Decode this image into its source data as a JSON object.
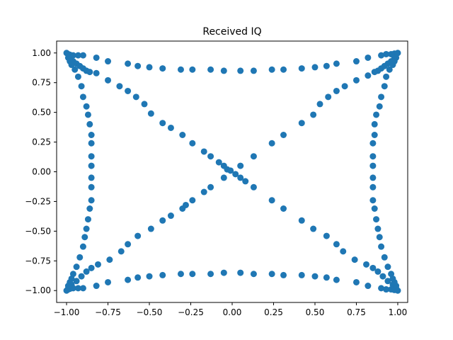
{
  "chart_data": {
    "type": "scatter",
    "title": "Received IQ",
    "xlabel": "",
    "ylabel": "",
    "xlim": [
      -1.06,
      1.06
    ],
    "ylim": [
      -1.1,
      1.1
    ],
    "xticks": [
      -1.0,
      -0.75,
      -0.5,
      -0.25,
      0.0,
      0.25,
      0.5,
      0.75,
      1.0
    ],
    "xtick_labels": [
      "−1.00",
      "−0.75",
      "−0.50",
      "−0.25",
      "0.00",
      "0.25",
      "0.50",
      "0.75",
      "1.00"
    ],
    "yticks": [
      -1.0,
      -0.75,
      -0.5,
      -0.25,
      0.0,
      0.25,
      0.5,
      0.75,
      1.0
    ],
    "ytick_labels": [
      "−1.00",
      "−0.75",
      "−0.50",
      "−0.25",
      "0.00",
      "0.25",
      "0.50",
      "0.75",
      "1.00"
    ],
    "grid": false,
    "marker_color": "#1f77b4",
    "series": [
      {
        "points": [
          [
            -0.96,
            0.93
          ],
          [
            -0.98,
            0.96
          ],
          [
            -0.94,
            0.91
          ],
          [
            -0.92,
            0.89
          ],
          [
            -0.9,
            0.87
          ],
          [
            -0.88,
            0.85
          ],
          [
            -0.86,
            0.84
          ],
          [
            -0.82,
            0.83
          ],
          [
            -0.75,
            0.77
          ],
          [
            -0.68,
            0.72
          ],
          [
            -0.63,
            0.68
          ],
          [
            -0.58,
            0.63
          ],
          [
            -0.53,
            0.57
          ],
          [
            -0.49,
            0.49
          ],
          [
            -0.42,
            0.41
          ],
          [
            -0.37,
            0.37
          ],
          [
            -0.3,
            0.31
          ],
          [
            -0.24,
            0.24
          ],
          [
            -0.17,
            0.17
          ],
          [
            -0.13,
            0.13
          ],
          [
            -0.08,
            0.08
          ],
          [
            -0.05,
            0.05
          ],
          [
            -0.03,
            0.02
          ],
          [
            -0.01,
            0.01
          ],
          [
            0.02,
            -0.02
          ],
          [
            0.05,
            -0.05
          ],
          [
            0.08,
            -0.08
          ],
          [
            0.13,
            -0.13
          ],
          [
            0.24,
            -0.24
          ],
          [
            0.31,
            -0.31
          ],
          [
            0.42,
            -0.41
          ],
          [
            0.49,
            -0.48
          ],
          [
            0.57,
            -0.54
          ],
          [
            0.63,
            -0.61
          ],
          [
            0.67,
            -0.67
          ],
          [
            0.74,
            -0.74
          ],
          [
            0.81,
            -0.78
          ],
          [
            0.85,
            -0.81
          ],
          [
            0.88,
            -0.84
          ],
          [
            0.91,
            -0.88
          ],
          [
            0.94,
            -0.92
          ],
          [
            0.97,
            -0.95
          ],
          [
            0.99,
            -0.98
          ],
          [
            0.96,
            0.93
          ],
          [
            0.98,
            0.96
          ],
          [
            0.94,
            0.91
          ],
          [
            0.92,
            0.89
          ],
          [
            0.9,
            0.87
          ],
          [
            0.88,
            0.85
          ],
          [
            0.86,
            0.84
          ],
          [
            0.82,
            0.81
          ],
          [
            0.75,
            0.77
          ],
          [
            0.68,
            0.72
          ],
          [
            0.63,
            0.68
          ],
          [
            0.58,
            0.63
          ],
          [
            0.53,
            0.57
          ],
          [
            0.49,
            0.48
          ],
          [
            0.42,
            0.41
          ],
          [
            0.31,
            0.31
          ],
          [
            0.24,
            0.24
          ],
          [
            0.13,
            0.13
          ],
          [
            0.05,
            0.05
          ],
          [
            -0.05,
            -0.05
          ],
          [
            -0.13,
            -0.13
          ],
          [
            -0.17,
            -0.17
          ],
          [
            -0.24,
            -0.24
          ],
          [
            -0.28,
            -0.28
          ],
          [
            -0.3,
            -0.31
          ],
          [
            -0.37,
            -0.37
          ],
          [
            -0.42,
            -0.41
          ],
          [
            -0.49,
            -0.48
          ],
          [
            -0.57,
            -0.54
          ],
          [
            -0.63,
            -0.61
          ],
          [
            -0.67,
            -0.67
          ],
          [
            -0.74,
            -0.74
          ],
          [
            -0.81,
            -0.78
          ],
          [
            -0.85,
            -0.81
          ],
          [
            -0.88,
            -0.84
          ],
          [
            -0.91,
            -0.88
          ],
          [
            -0.94,
            -0.92
          ],
          [
            -0.97,
            -0.95
          ],
          [
            -0.99,
            -0.98
          ],
          [
            -1.0,
            1.0
          ],
          [
            -0.99,
            0.99
          ],
          [
            -0.98,
            0.985
          ],
          [
            -0.96,
            0.98
          ],
          [
            -0.93,
            0.98
          ],
          [
            -0.9,
            0.98
          ],
          [
            -0.82,
            0.96
          ],
          [
            -0.75,
            0.93
          ],
          [
            -0.63,
            0.91
          ],
          [
            -0.57,
            0.89
          ],
          [
            -0.5,
            0.88
          ],
          [
            -0.42,
            0.87
          ],
          [
            -0.31,
            0.86
          ],
          [
            -0.24,
            0.86
          ],
          [
            -0.13,
            0.86
          ],
          [
            -0.05,
            0.85
          ],
          [
            0.05,
            0.85
          ],
          [
            0.13,
            0.85
          ],
          [
            0.24,
            0.86
          ],
          [
            0.31,
            0.86
          ],
          [
            0.42,
            0.87
          ],
          [
            0.5,
            0.88
          ],
          [
            0.57,
            0.89
          ],
          [
            0.63,
            0.91
          ],
          [
            0.75,
            0.93
          ],
          [
            0.82,
            0.96
          ],
          [
            0.9,
            0.98
          ],
          [
            0.93,
            0.99
          ],
          [
            0.96,
            0.99
          ],
          [
            0.98,
            0.995
          ],
          [
            1.0,
            1.0
          ],
          [
            -1.0,
            -1.0
          ],
          [
            -0.99,
            -0.99
          ],
          [
            -0.98,
            -0.985
          ],
          [
            -0.96,
            -0.98
          ],
          [
            -0.93,
            -0.98
          ],
          [
            -0.9,
            -0.98
          ],
          [
            -0.82,
            -0.96
          ],
          [
            -0.75,
            -0.93
          ],
          [
            -0.63,
            -0.91
          ],
          [
            -0.57,
            -0.89
          ],
          [
            -0.5,
            -0.88
          ],
          [
            -0.42,
            -0.87
          ],
          [
            -0.31,
            -0.86
          ],
          [
            -0.24,
            -0.86
          ],
          [
            -0.13,
            -0.86
          ],
          [
            -0.05,
            -0.85
          ],
          [
            0.05,
            -0.85
          ],
          [
            0.13,
            -0.86
          ],
          [
            0.24,
            -0.86
          ],
          [
            0.31,
            -0.87
          ],
          [
            0.42,
            -0.87
          ],
          [
            0.5,
            -0.88
          ],
          [
            0.57,
            -0.89
          ],
          [
            0.63,
            -0.91
          ],
          [
            0.75,
            -0.93
          ],
          [
            0.82,
            -0.96
          ],
          [
            0.9,
            -0.98
          ],
          [
            0.93,
            -0.99
          ],
          [
            0.96,
            -0.99
          ],
          [
            0.98,
            -0.995
          ],
          [
            -0.99,
            0.96
          ],
          [
            -0.98,
            0.93
          ],
          [
            -0.97,
            0.9
          ],
          [
            -0.95,
            0.86
          ],
          [
            -0.93,
            0.8
          ],
          [
            -0.91,
            0.72
          ],
          [
            -0.9,
            0.63
          ],
          [
            -0.88,
            0.55
          ],
          [
            -0.87,
            0.48
          ],
          [
            -0.86,
            0.4
          ],
          [
            -0.85,
            0.31
          ],
          [
            -0.85,
            0.24
          ],
          [
            -0.85,
            0.13
          ],
          [
            -0.85,
            0.05
          ],
          [
            -0.85,
            -0.05
          ],
          [
            -0.85,
            -0.13
          ],
          [
            -0.85,
            -0.24
          ],
          [
            -0.86,
            -0.31
          ],
          [
            -0.87,
            -0.4
          ],
          [
            -0.88,
            -0.48
          ],
          [
            -0.89,
            -0.55
          ],
          [
            -0.9,
            -0.63
          ],
          [
            -0.92,
            -0.72
          ],
          [
            -0.94,
            -0.8
          ],
          [
            -0.96,
            -0.86
          ],
          [
            -0.97,
            -0.9
          ],
          [
            -0.98,
            -0.93
          ],
          [
            -0.99,
            -0.96
          ],
          [
            0.99,
            0.96
          ],
          [
            0.98,
            0.93
          ],
          [
            0.97,
            0.9
          ],
          [
            0.95,
            0.86
          ],
          [
            0.93,
            0.8
          ],
          [
            0.92,
            0.72
          ],
          [
            0.9,
            0.63
          ],
          [
            0.89,
            0.55
          ],
          [
            0.87,
            0.48
          ],
          [
            0.86,
            0.4
          ],
          [
            0.86,
            0.31
          ],
          [
            0.85,
            0.24
          ],
          [
            0.85,
            0.13
          ],
          [
            0.85,
            0.05
          ],
          [
            0.85,
            -0.05
          ],
          [
            0.85,
            -0.13
          ],
          [
            0.85,
            -0.24
          ],
          [
            0.86,
            -0.31
          ],
          [
            0.87,
            -0.4
          ],
          [
            0.88,
            -0.48
          ],
          [
            0.89,
            -0.55
          ],
          [
            0.9,
            -0.63
          ],
          [
            0.92,
            -0.72
          ],
          [
            0.94,
            -0.8
          ],
          [
            0.96,
            -0.86
          ],
          [
            0.97,
            -0.9
          ],
          [
            0.98,
            -0.93
          ],
          [
            0.99,
            -0.96
          ],
          [
            1.0,
            -1.0
          ]
        ]
      }
    ]
  }
}
